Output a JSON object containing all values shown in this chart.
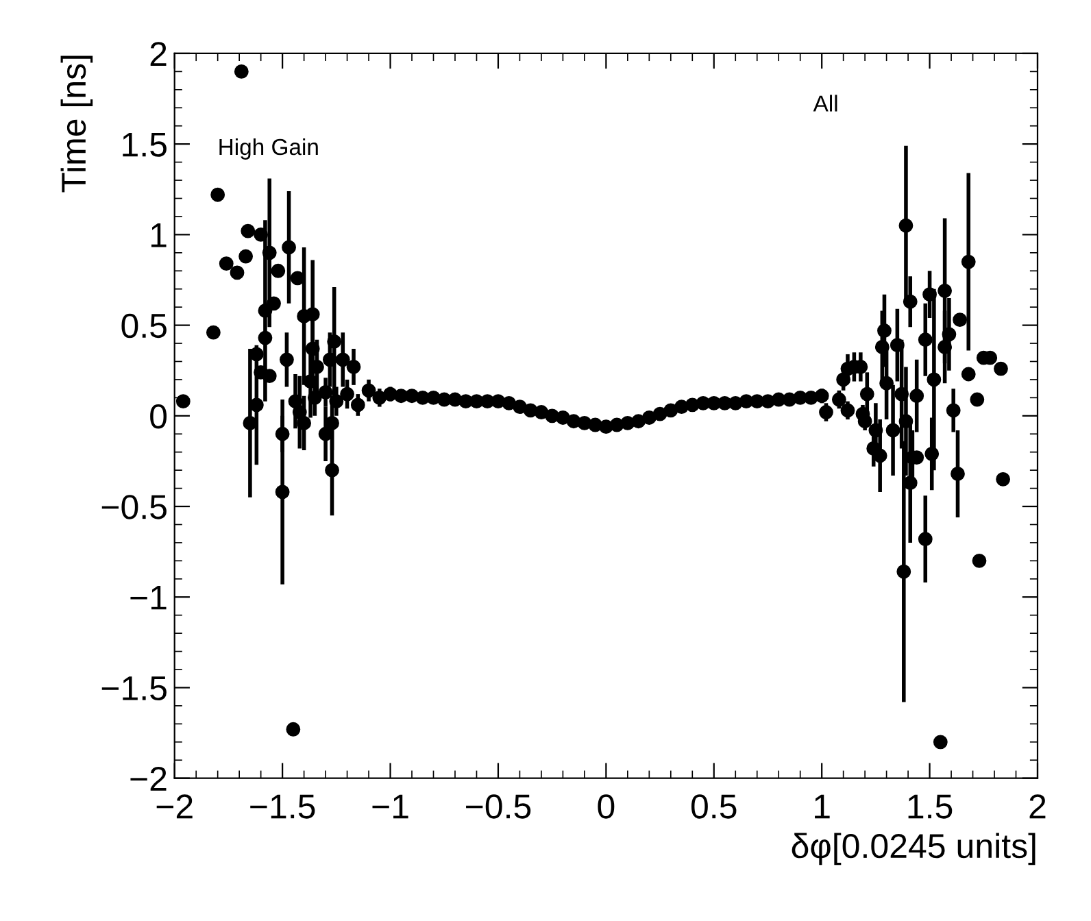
{
  "chart_data": {
    "type": "scatter",
    "xlabel": "δφ[0.0245 units]",
    "ylabel": "Time [ns]",
    "annotations": [
      "High Gain",
      "All"
    ],
    "xlim": [
      -2,
      2
    ],
    "ylim": [
      -2,
      2
    ],
    "xticks": [
      {
        "value": -2,
        "label": "−2"
      },
      {
        "value": -1.5,
        "label": "−1.5"
      },
      {
        "value": -1,
        "label": "−1"
      },
      {
        "value": -0.5,
        "label": "−0.5"
      },
      0,
      0.5,
      1,
      1.5,
      2
    ],
    "yticks": [
      {
        "value": -2,
        "label": "−2"
      },
      {
        "value": -1.5,
        "label": "−1.5"
      },
      {
        "value": -1,
        "label": "−1"
      },
      {
        "value": -0.5,
        "label": "−0.5"
      },
      0,
      0.5,
      1,
      1.5,
      2
    ],
    "grid": false,
    "legend": false,
    "marker": "circle",
    "series": [
      {
        "color": "#000000",
        "x": [
          -1.96,
          -1.82,
          -1.8,
          -1.76,
          -1.71,
          -1.69,
          -1.67,
          -1.66,
          -1.65,
          -1.62,
          -1.62,
          -1.6,
          -1.6,
          -1.58,
          -1.58,
          -1.56,
          -1.56,
          -1.54,
          -1.52,
          -1.5,
          -1.5,
          -1.48,
          -1.47,
          -1.45,
          -1.44,
          -1.43,
          -1.42,
          -1.4,
          -1.4,
          -1.37,
          -1.36,
          -1.36,
          -1.35,
          -1.34,
          -1.33,
          -1.3,
          -1.3,
          -1.28,
          -1.27,
          -1.27,
          -1.26,
          -1.25,
          -1.22,
          -1.2,
          -1.17,
          -1.15,
          -1.1,
          -1.05,
          -1.0,
          -0.95,
          -0.9,
          -0.85,
          -0.8,
          -0.75,
          -0.7,
          -0.65,
          -0.6,
          -0.55,
          -0.5,
          -0.45,
          -0.4,
          -0.35,
          -0.3,
          -0.25,
          -0.2,
          -0.15,
          -0.1,
          -0.05,
          0,
          0.05,
          0.1,
          0.15,
          0.2,
          0.25,
          0.3,
          0.35,
          0.4,
          0.45,
          0.5,
          0.55,
          0.6,
          0.65,
          0.7,
          0.75,
          0.8,
          0.85,
          0.9,
          0.95,
          1.0,
          1.02,
          1.08,
          1.1,
          1.12,
          1.12,
          1.15,
          1.18,
          1.19,
          1.2,
          1.21,
          1.24,
          1.25,
          1.27,
          1.28,
          1.29,
          1.3,
          1.33,
          1.35,
          1.37,
          1.38,
          1.39,
          1.39,
          1.41,
          1.41,
          1.42,
          1.44,
          1.44,
          1.48,
          1.48,
          1.5,
          1.51,
          1.52,
          1.55,
          1.57,
          1.57,
          1.59,
          1.61,
          1.63,
          1.64,
          1.68,
          1.68,
          1.72,
          1.73,
          1.75,
          1.78,
          1.83,
          1.84
        ],
        "values": [
          0.08,
          0.46,
          1.22,
          0.84,
          0.79,
          1.9,
          0.88,
          1.02,
          -0.04,
          0.34,
          0.06,
          1.0,
          0.24,
          0.58,
          0.43,
          0.9,
          0.22,
          0.62,
          0.8,
          -0.1,
          -0.42,
          0.31,
          0.93,
          -1.73,
          0.08,
          0.76,
          0.02,
          0.55,
          -0.04,
          0.19,
          0.56,
          0.37,
          0.1,
          0.27,
          null,
          -0.1,
          0.13,
          0.31,
          -0.04,
          -0.3,
          0.41,
          0.08,
          0.31,
          0.12,
          0.27,
          0.06,
          0.14,
          0.1,
          0.12,
          0.11,
          0.11,
          0.1,
          0.1,
          0.09,
          0.09,
          0.08,
          0.08,
          0.08,
          0.08,
          0.07,
          0.05,
          0.03,
          0.02,
          0.0,
          -0.01,
          -0.03,
          -0.04,
          -0.05,
          -0.06,
          -0.05,
          -0.04,
          -0.03,
          -0.01,
          0.01,
          0.03,
          0.05,
          0.06,
          0.07,
          0.07,
          0.07,
          0.07,
          0.08,
          0.08,
          0.08,
          0.09,
          0.09,
          0.1,
          0.1,
          0.11,
          0.02,
          0.09,
          0.2,
          0.26,
          0.03,
          0.27,
          0.27,
          0.01,
          -0.03,
          0.12,
          -0.18,
          -0.08,
          -0.22,
          0.38,
          0.47,
          0.18,
          -0.08,
          0.39,
          0.12,
          -0.86,
          1.05,
          -0.03,
          0.63,
          -0.37,
          -0.23,
          -0.23,
          0.11,
          0.42,
          -0.68,
          0.67,
          -0.21,
          0.2,
          -1.8,
          0.69,
          0.38,
          0.45,
          0.03,
          -0.32,
          0.53,
          0.85,
          0.23,
          0.09,
          -0.8,
          0.32,
          0.32,
          0.26,
          -0.35
        ],
        "errors": [
          null,
          null,
          null,
          null,
          null,
          null,
          null,
          null,
          0.41,
          null,
          0.33,
          null,
          null,
          0.5,
          null,
          0.41,
          null,
          null,
          null,
          0.1,
          0.51,
          0.15,
          0.31,
          null,
          0.15,
          null,
          0.2,
          0.38,
          0.15,
          0.2,
          0.3,
          0.2,
          0.1,
          0.15,
          null,
          0.15,
          0.08,
          0.15,
          0.15,
          0.25,
          0.3,
          0.08,
          0.15,
          0.08,
          0.1,
          0.06,
          0.06,
          0.05,
          0.04,
          0.03,
          0.02,
          0.02,
          0.02,
          null,
          null,
          null,
          null,
          null,
          null,
          null,
          null,
          null,
          null,
          null,
          null,
          null,
          null,
          null,
          null,
          null,
          null,
          null,
          null,
          null,
          null,
          null,
          null,
          null,
          null,
          null,
          null,
          null,
          null,
          null,
          0.02,
          0.02,
          0.03,
          0.03,
          0.04,
          0.05,
          0.05,
          0.06,
          0.08,
          0.05,
          0.08,
          0.08,
          0.05,
          0.05,
          0.12,
          0.1,
          0.15,
          0.2,
          0.2,
          0.2,
          0.2,
          0.25,
          0.2,
          0.3,
          0.72,
          0.44,
          0.3,
          0.14,
          0.33,
          0.15,
          null,
          0.2,
          0.2,
          0.24,
          0.13,
          0.2,
          0.5,
          null,
          0.4,
          0.2,
          0.2,
          0.12,
          0.24,
          null,
          0.49,
          null,
          null,
          null,
          null,
          null,
          null,
          null
        ]
      }
    ]
  }
}
